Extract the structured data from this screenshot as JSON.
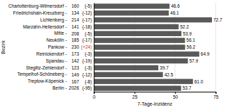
{
  "chart_data": {
    "type": "bar",
    "orientation": "horizontal",
    "categories": [
      "Charlottenburg-Wilmersdorf -",
      "Friedrichshain-Kreuzberg -",
      "Lichtenberg -",
      "Marzahn-Hellersdorf -",
      "Mitte -",
      "Neukölln -",
      "Pankow -",
      "Reinickendorf -",
      "Spandau -",
      "Steglitz-Zehlendorf -",
      "Tempelhof-Schöneberg -",
      "Treptow-Köpenick -",
      "Berlin -"
    ],
    "values": [
      46.6,
      46.1,
      72.7,
      52.2,
      53.9,
      56.1,
      56.2,
      64.9,
      57.9,
      39.7,
      42.5,
      61.0,
      53.7
    ],
    "value_labels": [
      "46.6",
      "46.1",
      "72.7",
      "52.2",
      "53.9",
      "56.1",
      "56.2",
      "64.9",
      "57.9",
      "39.7",
      "42.5",
      "61.0",
      "53.7"
    ],
    "data_labels": true,
    "color": "#595959",
    "xlabel": "7-Tage-Inzidenz",
    "ylabel": "Bezirk",
    "xlim": [
      0,
      75
    ],
    "xticks": [
      0,
      25,
      50,
      75
    ],
    "grid": true,
    "cases": [
      160,
      134,
      214,
      141,
      208,
      185,
      230,
      173,
      142,
      123,
      149,
      167,
      2026
    ],
    "changes": [
      {
        "value": -5,
        "label": "(-5)"
      },
      {
        "value": -12,
        "label": "(-12)"
      },
      {
        "value": -17,
        "label": "(-17)"
      },
      {
        "value": -18,
        "label": "(-18)"
      },
      {
        "value": -5,
        "label": "(-5)"
      },
      {
        "value": -17,
        "label": "(-17)"
      },
      {
        "value": 24,
        "label": "(+24)"
      },
      {
        "value": -3,
        "label": "(-3)"
      },
      {
        "value": -19,
        "label": "(-19)"
      },
      {
        "value": -3,
        "label": "(-3)"
      },
      {
        "value": -12,
        "label": "(-12)"
      },
      {
        "value": -8,
        "label": "(-8)"
      },
      {
        "value": -95,
        "label": "(-95)"
      }
    ]
  }
}
